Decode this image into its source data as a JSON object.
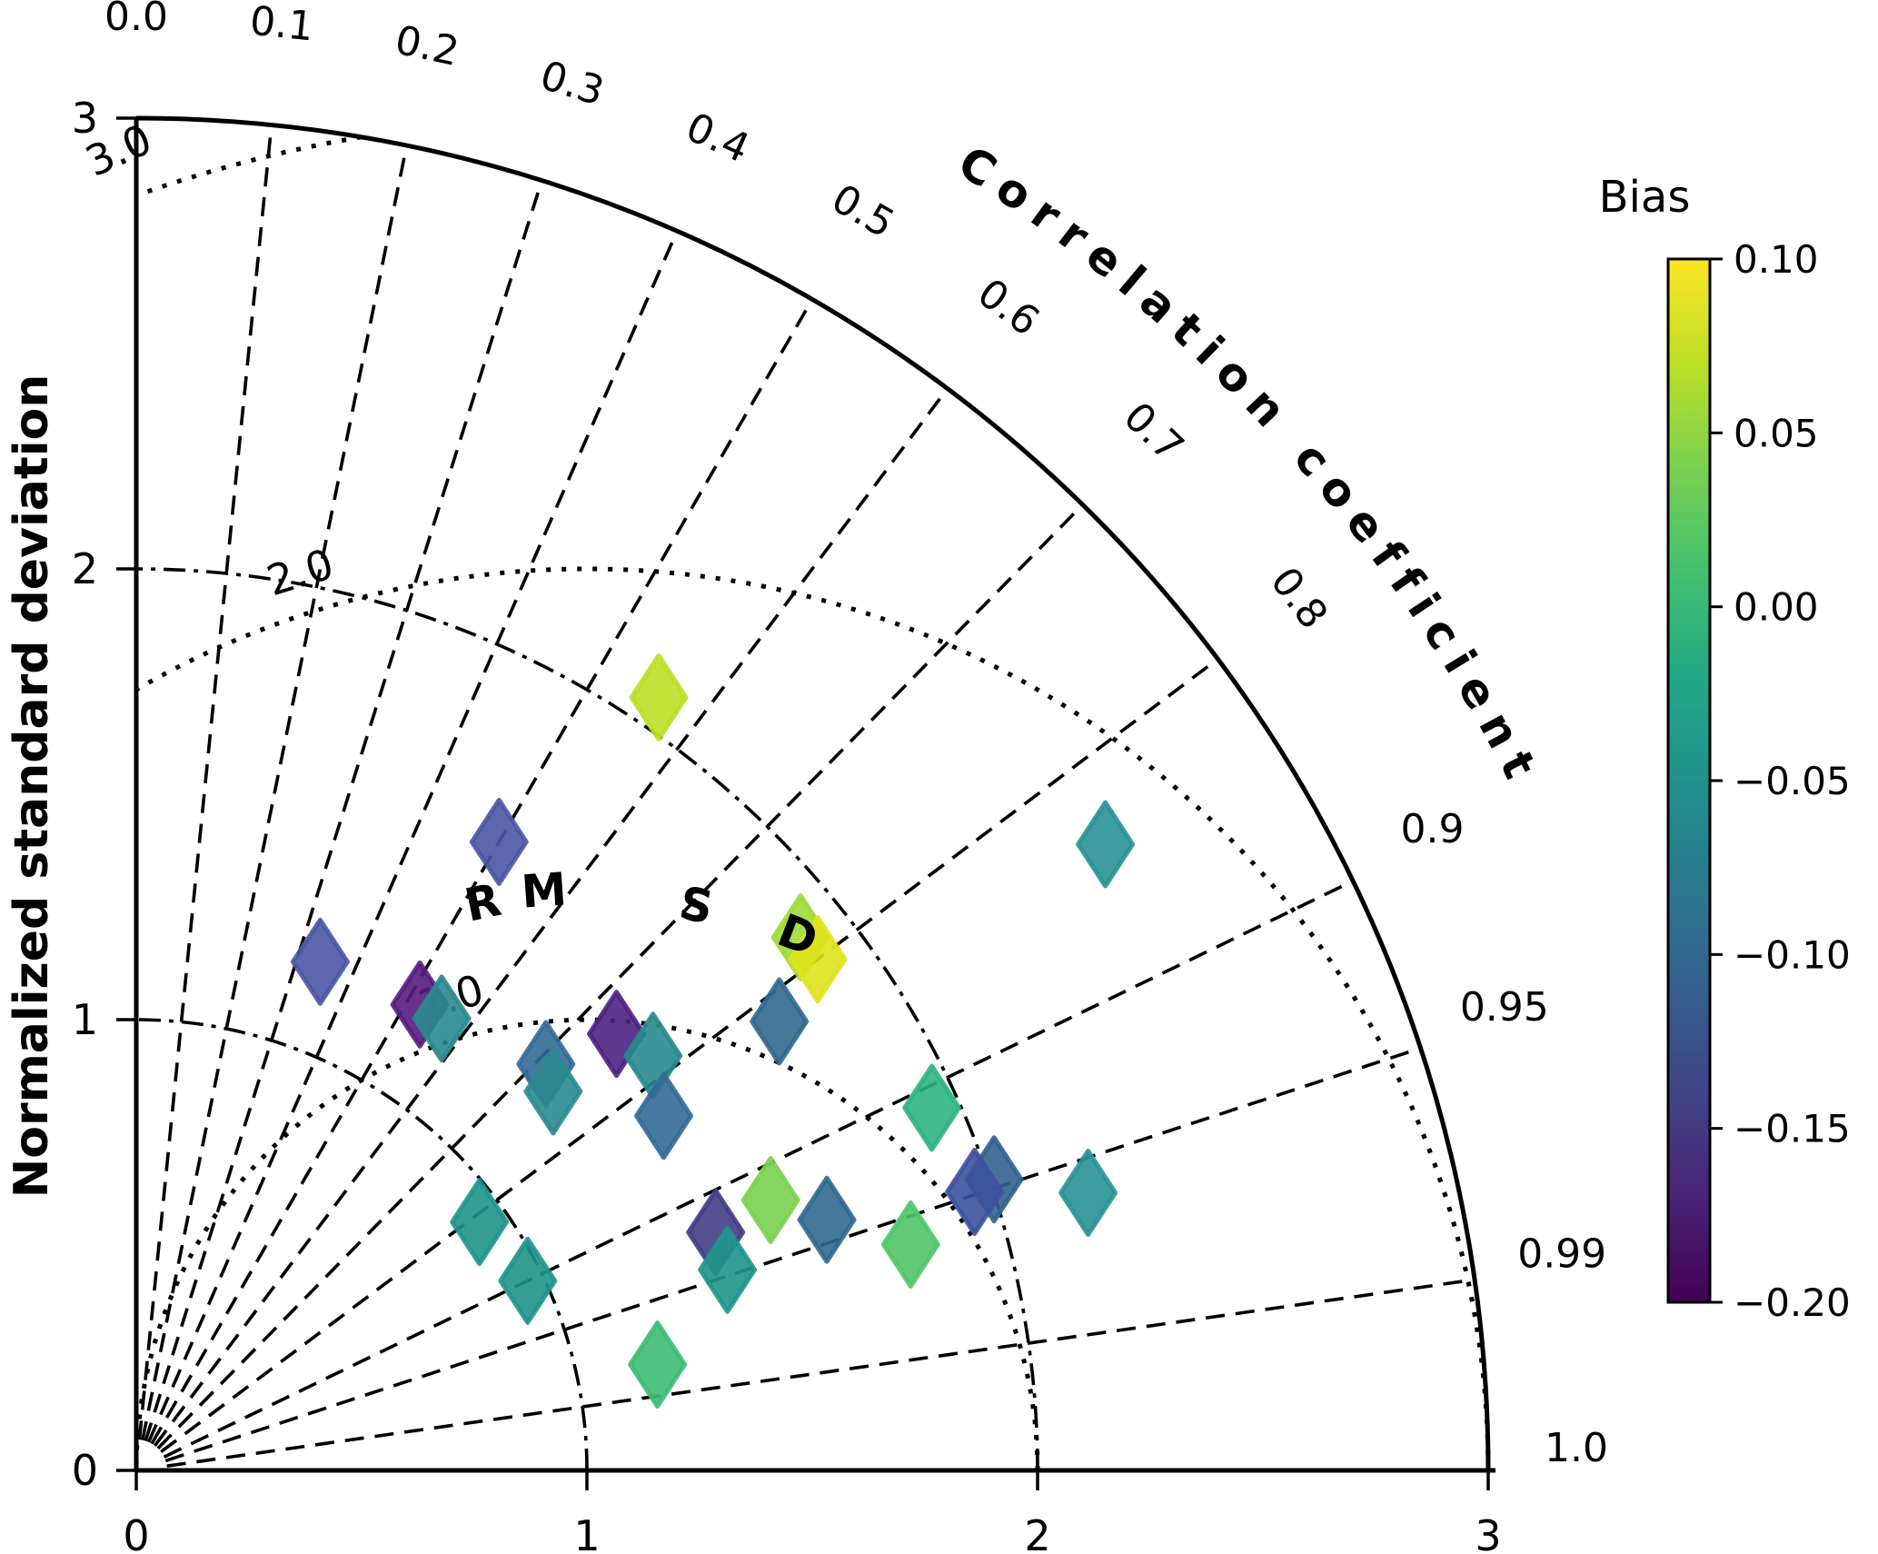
{
  "chart_data": {
    "type": "scatter",
    "subtype": "taylor_diagram",
    "std_axis": {
      "label": "Normalized standard deviation",
      "tick_labels": [
        "0",
        "1",
        "2",
        "3"
      ],
      "range": [
        0,
        3
      ],
      "dashdot_arc_levels": [
        1,
        2
      ]
    },
    "corr_axis": {
      "label": "Correlation coefficient",
      "ticks": [
        {
          "label": "0.0",
          "value": 0.0
        },
        {
          "label": "0.1",
          "value": 0.1
        },
        {
          "label": "0.2",
          "value": 0.2
        },
        {
          "label": "0.3",
          "value": 0.3
        },
        {
          "label": "0.4",
          "value": 0.4
        },
        {
          "label": "0.5",
          "value": 0.5
        },
        {
          "label": "0.6",
          "value": 0.6
        },
        {
          "label": "0.7",
          "value": 0.7
        },
        {
          "label": "0.8",
          "value": 0.8
        },
        {
          "label": "0.9",
          "value": 0.9
        },
        {
          "label": "0.95",
          "value": 0.95
        },
        {
          "label": "0.99",
          "value": 0.99
        },
        {
          "label": "1.0",
          "value": 1.0
        }
      ],
      "gridline_values": [
        0.1,
        0.2,
        0.3,
        0.4,
        0.5,
        0.6,
        0.7,
        0.8,
        0.9,
        0.95,
        0.99
      ]
    },
    "rmsd": {
      "title_letters": [
        "R",
        "M",
        "S",
        "D"
      ],
      "contours": [
        {
          "label": "1.0",
          "level": 1.0,
          "arc_deg": [
            0,
            180
          ]
        },
        {
          "label": "2.0",
          "level": 2.0,
          "arc_deg": [
            0,
            120
          ]
        },
        {
          "label": "3.0",
          "level": 3.0,
          "arc_deg": [
            99.6,
            109.5
          ]
        }
      ],
      "reference_std": 1.0
    },
    "colorbar": {
      "title": "Bias",
      "range": [
        -0.2,
        0.1
      ],
      "tick_labels": [
        "0.10",
        "0.05",
        "0.00",
        "−0.05",
        "−0.10",
        "−0.15",
        "−0.20"
      ],
      "colormap": "viridis",
      "gradient_top_to_bottom": [
        "#fde725",
        "#bddf26",
        "#7ad151",
        "#44bf70",
        "#22a884",
        "#21918c",
        "#2a788e",
        "#355f8d",
        "#414487",
        "#482475",
        "#440154"
      ]
    },
    "points": [
      {
        "corr": 0.56,
        "std": 2.07,
        "bias": 0.07,
        "color": "#bddf26"
      },
      {
        "corr": 0.5,
        "std": 1.61,
        "bias": -0.13,
        "color": "#4a57a4"
      },
      {
        "corr": 0.34,
        "std": 1.2,
        "bias": -0.13,
        "color": "#4a57a4"
      },
      {
        "corr": 0.52,
        "std": 1.21,
        "bias": -0.19,
        "color": "#581b7f"
      },
      {
        "corr": 0.56,
        "std": 1.21,
        "bias": -0.06,
        "color": "#2a8a8e"
      },
      {
        "corr": 0.71,
        "std": 1.28,
        "bias": -0.1,
        "color": "#336a96"
      },
      {
        "corr": 0.74,
        "std": 1.25,
        "bias": -0.06,
        "color": "#2a8a8e"
      },
      {
        "corr": 0.74,
        "std": 1.44,
        "bias": -0.18,
        "color": "#4e2182"
      },
      {
        "corr": 0.78,
        "std": 1.47,
        "bias": -0.06,
        "color": "#27898d"
      },
      {
        "corr": 0.83,
        "std": 1.41,
        "bias": -0.1,
        "color": "#336a96"
      },
      {
        "corr": 0.78,
        "std": 1.89,
        "bias": 0.04,
        "color": "#a0da39"
      },
      {
        "corr": 0.8,
        "std": 1.89,
        "bias": 0.08,
        "color": "#e0e31c"
      },
      {
        "corr": 0.82,
        "std": 1.74,
        "bias": -0.1,
        "color": "#31688e"
      },
      {
        "corr": 0.91,
        "std": 1.94,
        "bias": -0.01,
        "color": "#2db482"
      },
      {
        "corr": 0.84,
        "std": 2.56,
        "bias": -0.05,
        "color": "#2a9295"
      },
      {
        "corr": 0.96,
        "std": 2.2,
        "bias": -0.05,
        "color": "#2a9295"
      },
      {
        "corr": 0.947,
        "std": 2.01,
        "bias": -0.1,
        "color": "#33628f"
      },
      {
        "corr": 0.949,
        "std": 1.96,
        "bias": -0.12,
        "color": "#3d519c"
      },
      {
        "corr": 0.96,
        "std": 1.79,
        "bias": 0.01,
        "color": "#52c569"
      },
      {
        "corr": 0.94,
        "std": 1.63,
        "bias": -0.1,
        "color": "#31688e"
      },
      {
        "corr": 0.92,
        "std": 1.53,
        "bias": 0.03,
        "color": "#7ad151"
      },
      {
        "corr": 0.925,
        "std": 1.39,
        "bias": -0.15,
        "color": "#433d84"
      },
      {
        "corr": 0.947,
        "std": 1.385,
        "bias": -0.045,
        "color": "#1f958b"
      },
      {
        "corr": 0.81,
        "std": 0.94,
        "bias": -0.045,
        "color": "#1f958b"
      },
      {
        "corr": 0.9,
        "std": 0.965,
        "bias": -0.045,
        "color": "#1f958b"
      },
      {
        "corr": 0.98,
        "std": 1.18,
        "bias": 0.0,
        "color": "#3dbc74"
      }
    ]
  }
}
